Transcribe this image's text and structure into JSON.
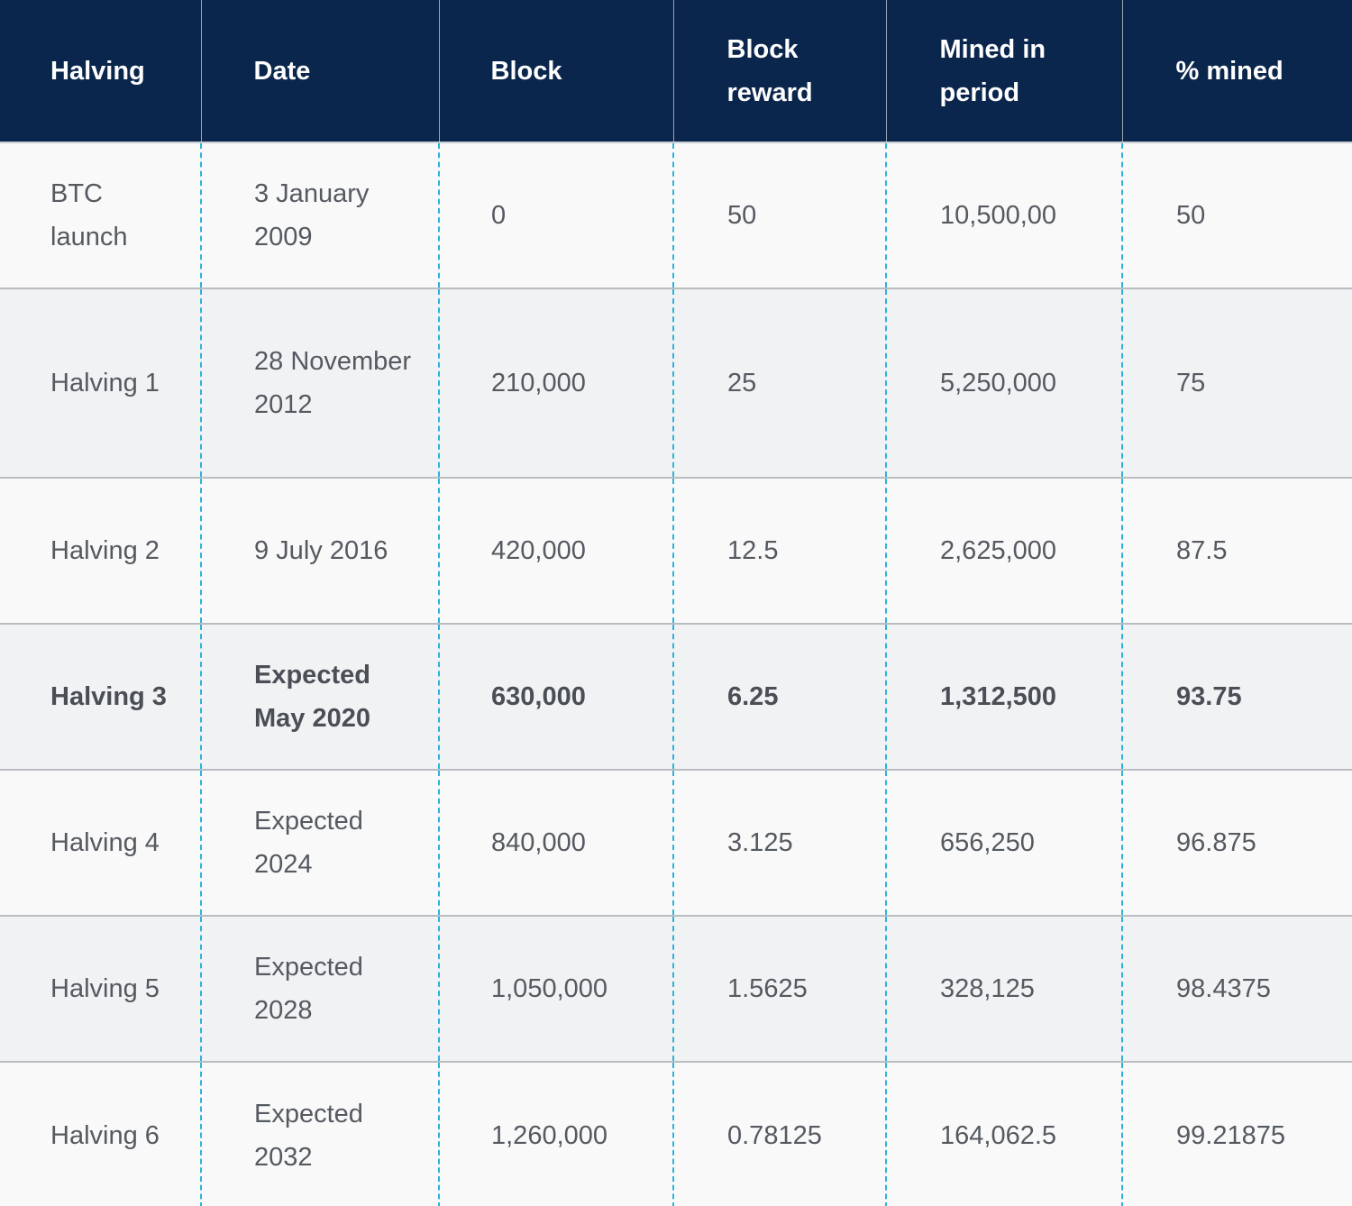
{
  "table": {
    "headers": [
      "Halving",
      "Date",
      "Block",
      "Block reward",
      "Mined in period",
      "% mined"
    ],
    "rows": [
      [
        "BTC launch",
        "3 January 2009",
        "0",
        "50",
        "10,500,00",
        "50"
      ],
      [
        "Halving 1",
        "28 November 2012",
        "210,000",
        "25",
        "5,250,000",
        "75"
      ],
      [
        "Halving 2",
        "9 July 2016",
        "420,000",
        "12.5",
        "2,625,000",
        "87.5"
      ],
      [
        "Halving 3",
        "Expected May 2020",
        "630,000",
        "6.25",
        "1,312,500",
        "93.75"
      ],
      [
        "Halving 4",
        "Expected 2024",
        "840,000",
        "3.125",
        "656,250",
        "96.875"
      ],
      [
        "Halving 5",
        "Expected 2028",
        "1,050,000",
        "1.5625",
        "328,125",
        "98.4375"
      ],
      [
        "Halving 6",
        "Expected 2032",
        "1,260,000",
        "0.78125",
        "164,062.5",
        "99.21875"
      ]
    ]
  },
  "colors": {
    "header_background": "#0b264d",
    "header_text": "#ffffff",
    "row_odd": "#f9f9f9",
    "row_even": "#f1f2f4",
    "column_divider": "#2cb4d8",
    "body_text": "#555a61"
  }
}
